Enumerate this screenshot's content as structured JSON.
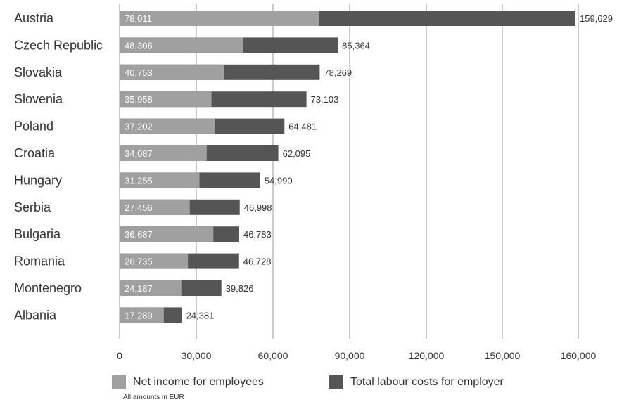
{
  "chart_data": {
    "type": "bar",
    "orientation": "horizontal",
    "stacked": false,
    "categories": [
      "Austria",
      "Czech Republic",
      "Slovakia",
      "Slovenia",
      "Poland",
      "Croatia",
      "Hungary",
      "Serbia",
      "Bulgaria",
      "Romania",
      "Montenegro",
      "Albania"
    ],
    "series": [
      {
        "name": "Net income for employees",
        "color": "#a0a0a0",
        "values": [
          78011,
          48306,
          40753,
          35958,
          37202,
          34087,
          31255,
          27456,
          36687,
          26735,
          24187,
          17289
        ],
        "labels": [
          "78,011",
          "48,306",
          "40,753",
          "35,958",
          "37,202",
          "34,087",
          "31,255",
          "27,456",
          "36,687",
          "26,735",
          "24,187",
          "17,289"
        ]
      },
      {
        "name": "Total labour costs for employer",
        "color": "#555555",
        "values": [
          159629,
          85364,
          78269,
          73103,
          64481,
          62095,
          54990,
          46998,
          46783,
          46728,
          39826,
          24381
        ],
        "labels": [
          "159,629",
          "85,364",
          "78,269",
          "73,103",
          "64,481",
          "62,095",
          "54,990",
          "46,998",
          "46,783",
          "46,728",
          "39,826",
          "24,381"
        ]
      }
    ],
    "xticks": [
      0,
      30000,
      60000,
      90000,
      120000,
      150000,
      160000
    ],
    "xtick_labels": [
      "0",
      "30,000",
      "60,000",
      "90,000",
      "120,000",
      "150,000",
      "160,000"
    ],
    "grid": true,
    "legend_position": "bottom",
    "note": "All amounts in EUR"
  }
}
